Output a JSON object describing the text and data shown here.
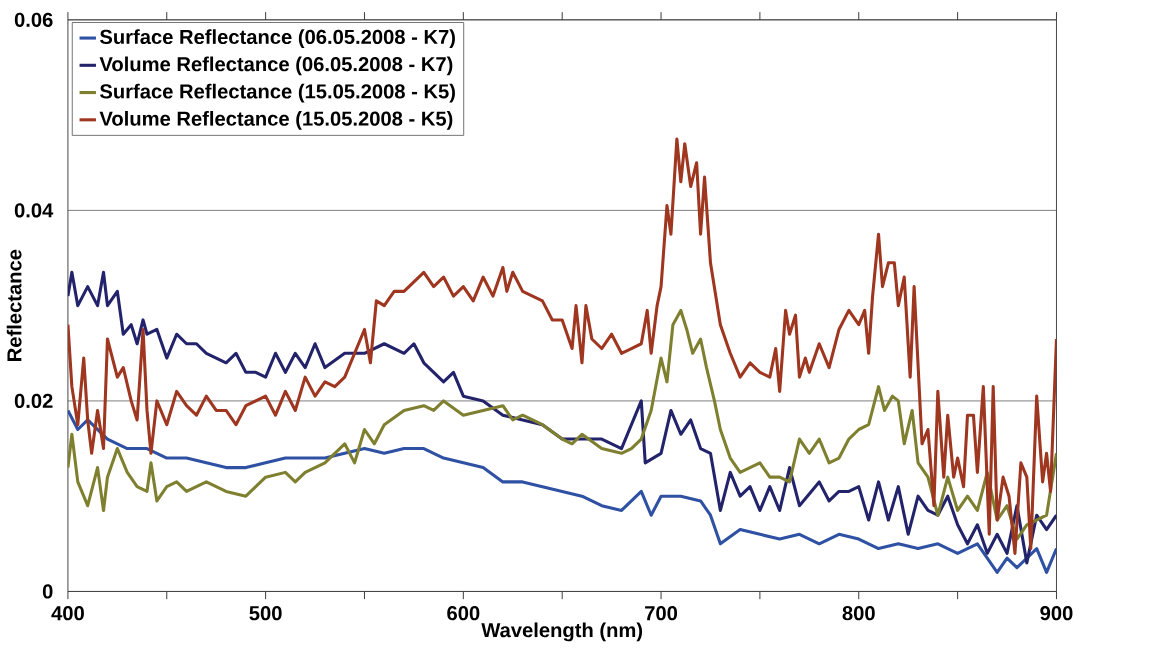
{
  "chart_data": {
    "type": "line",
    "xlabel": "Wavelength (nm)",
    "ylabel": "Reflectance",
    "xlim": [
      400,
      900
    ],
    "xticks": [
      400,
      500,
      600,
      700,
      800,
      900
    ],
    "ylim": [
      0,
      0.06
    ],
    "yticks": [
      0,
      0.02,
      0.04,
      0.06
    ],
    "grid": "y",
    "legend": "top left",
    "marker": "none",
    "line_style": "solid",
    "series": [
      {
        "name": "Surface Reflectance (06.05.2008 - K7)",
        "color": "#2f51a3",
        "x": [
          400,
          405,
          410,
          420,
          430,
          440,
          450,
          460,
          470,
          480,
          490,
          500,
          510,
          520,
          530,
          540,
          550,
          560,
          570,
          580,
          590,
          600,
          610,
          620,
          630,
          640,
          650,
          660,
          670,
          680,
          690,
          695,
          700,
          710,
          720,
          725,
          730,
          740,
          750,
          760,
          770,
          780,
          790,
          800,
          810,
          820,
          830,
          840,
          850,
          860,
          870,
          875,
          880,
          890,
          895,
          900
        ],
        "values": [
          0.019,
          0.017,
          0.018,
          0.016,
          0.015,
          0.015,
          0.014,
          0.014,
          0.0135,
          0.013,
          0.013,
          0.0135,
          0.014,
          0.014,
          0.014,
          0.0145,
          0.015,
          0.0145,
          0.015,
          0.015,
          0.014,
          0.0135,
          0.013,
          0.0115,
          0.0115,
          0.011,
          0.0105,
          0.01,
          0.009,
          0.0085,
          0.0105,
          0.008,
          0.01,
          0.01,
          0.0095,
          0.008,
          0.005,
          0.0065,
          0.006,
          0.0055,
          0.006,
          0.005,
          0.006,
          0.0055,
          0.0045,
          0.005,
          0.0045,
          0.005,
          0.004,
          0.005,
          0.002,
          0.0035,
          0.0025,
          0.0045,
          0.002,
          0.0045
        ]
      },
      {
        "name": "Volume Reflectance (06.05.2008 - K7)",
        "color": "#22236b",
        "x": [
          400,
          402,
          405,
          410,
          415,
          418,
          420,
          425,
          428,
          432,
          435,
          438,
          440,
          445,
          450,
          455,
          460,
          465,
          470,
          480,
          485,
          490,
          495,
          500,
          505,
          510,
          515,
          520,
          525,
          530,
          540,
          550,
          560,
          570,
          575,
          580,
          590,
          595,
          600,
          610,
          620,
          630,
          640,
          650,
          660,
          670,
          680,
          690,
          692,
          700,
          705,
          710,
          715,
          720,
          725,
          730,
          735,
          740,
          745,
          750,
          755,
          760,
          765,
          770,
          780,
          785,
          790,
          795,
          800,
          805,
          810,
          815,
          820,
          825,
          830,
          835,
          840,
          845,
          850,
          855,
          860,
          865,
          870,
          875,
          880,
          885,
          890,
          895,
          900
        ],
        "values": [
          0.031,
          0.0335,
          0.03,
          0.032,
          0.03,
          0.0335,
          0.03,
          0.0315,
          0.027,
          0.028,
          0.026,
          0.0285,
          0.027,
          0.0275,
          0.0245,
          0.027,
          0.026,
          0.026,
          0.025,
          0.024,
          0.025,
          0.023,
          0.023,
          0.0225,
          0.025,
          0.023,
          0.025,
          0.0235,
          0.026,
          0.0235,
          0.025,
          0.025,
          0.026,
          0.025,
          0.026,
          0.024,
          0.022,
          0.023,
          0.0205,
          0.02,
          0.0185,
          0.018,
          0.0175,
          0.016,
          0.016,
          0.016,
          0.015,
          0.02,
          0.0135,
          0.0145,
          0.019,
          0.0165,
          0.018,
          0.015,
          0.0145,
          0.0085,
          0.0125,
          0.01,
          0.011,
          0.0085,
          0.011,
          0.0085,
          0.013,
          0.009,
          0.0115,
          0.0095,
          0.0105,
          0.0105,
          0.011,
          0.0075,
          0.0115,
          0.0075,
          0.011,
          0.006,
          0.01,
          0.0085,
          0.008,
          0.01,
          0.007,
          0.005,
          0.007,
          0.004,
          0.006,
          0.004,
          0.009,
          0.003,
          0.008,
          0.0065,
          0.008
        ]
      },
      {
        "name": "Surface Reflectance (15.05.2008 - K5)",
        "color": "#7f7f30",
        "x": [
          400,
          402,
          405,
          410,
          415,
          418,
          420,
          425,
          430,
          435,
          440,
          442,
          445,
          450,
          455,
          460,
          470,
          480,
          490,
          495,
          500,
          510,
          515,
          520,
          525,
          530,
          535,
          540,
          545,
          550,
          555,
          560,
          570,
          580,
          585,
          590,
          600,
          610,
          620,
          625,
          630,
          640,
          650,
          655,
          660,
          670,
          680,
          685,
          690,
          695,
          700,
          703,
          706,
          710,
          713,
          716,
          720,
          723,
          727,
          730,
          735,
          740,
          745,
          750,
          755,
          760,
          765,
          770,
          775,
          780,
          785,
          790,
          795,
          800,
          805,
          810,
          813,
          817,
          820,
          823,
          827,
          830,
          835,
          840,
          845,
          850,
          855,
          860,
          865,
          870,
          875,
          880,
          885,
          890,
          895,
          900
        ],
        "values": [
          0.013,
          0.0165,
          0.0115,
          0.009,
          0.013,
          0.0085,
          0.012,
          0.015,
          0.0125,
          0.011,
          0.0105,
          0.0135,
          0.0095,
          0.011,
          0.0115,
          0.0105,
          0.0115,
          0.0105,
          0.01,
          0.011,
          0.012,
          0.0125,
          0.0115,
          0.0125,
          0.013,
          0.0135,
          0.0145,
          0.0155,
          0.0135,
          0.017,
          0.0155,
          0.0175,
          0.019,
          0.0195,
          0.019,
          0.02,
          0.0185,
          0.019,
          0.0195,
          0.018,
          0.0185,
          0.0175,
          0.016,
          0.0155,
          0.0165,
          0.015,
          0.0145,
          0.015,
          0.016,
          0.019,
          0.0245,
          0.022,
          0.028,
          0.0295,
          0.0275,
          0.025,
          0.0265,
          0.0235,
          0.02,
          0.017,
          0.014,
          0.0125,
          0.013,
          0.0135,
          0.012,
          0.012,
          0.0115,
          0.016,
          0.0145,
          0.016,
          0.0135,
          0.014,
          0.016,
          0.017,
          0.0175,
          0.0215,
          0.019,
          0.0205,
          0.02,
          0.0155,
          0.019,
          0.0135,
          0.012,
          0.008,
          0.012,
          0.0085,
          0.01,
          0.0085,
          0.0125,
          0.0075,
          0.009,
          0.0055,
          0.007,
          0.0075,
          0.008,
          0.0145
        ]
      },
      {
        "name": "Volume Reflectance (15.05.2008 - K5)",
        "color": "#9e3620",
        "x": [
          400,
          402,
          405,
          408,
          410,
          412,
          415,
          418,
          420,
          425,
          428,
          432,
          435,
          438,
          440,
          442,
          445,
          450,
          455,
          460,
          465,
          470,
          475,
          480,
          485,
          490,
          500,
          505,
          510,
          515,
          520,
          525,
          530,
          535,
          540,
          545,
          550,
          553,
          556,
          560,
          565,
          570,
          575,
          580,
          585,
          590,
          595,
          600,
          605,
          610,
          615,
          620,
          622,
          625,
          630,
          640,
          645,
          650,
          655,
          657,
          660,
          662,
          665,
          670,
          675,
          680,
          685,
          690,
          693,
          695,
          698,
          700,
          703,
          705,
          708,
          710,
          712,
          715,
          718,
          720,
          722,
          725,
          730,
          735,
          740,
          745,
          750,
          755,
          758,
          760,
          763,
          765,
          768,
          770,
          773,
          775,
          780,
          785,
          790,
          795,
          800,
          803,
          805,
          807,
          810,
          812,
          815,
          818,
          820,
          823,
          826,
          828,
          832,
          835,
          838,
          840,
          843,
          845,
          848,
          850,
          853,
          855,
          858,
          860,
          863,
          866,
          868,
          870,
          873,
          876,
          879,
          882,
          885,
          887,
          890,
          893,
          895,
          897,
          900
        ],
        "values": [
          0.028,
          0.0215,
          0.0175,
          0.0245,
          0.018,
          0.0145,
          0.019,
          0.015,
          0.0265,
          0.0225,
          0.0235,
          0.02,
          0.018,
          0.0275,
          0.019,
          0.0145,
          0.02,
          0.0175,
          0.021,
          0.0195,
          0.0185,
          0.0205,
          0.019,
          0.019,
          0.0175,
          0.0195,
          0.0205,
          0.0185,
          0.021,
          0.019,
          0.0225,
          0.0205,
          0.022,
          0.0215,
          0.0225,
          0.025,
          0.0275,
          0.024,
          0.0305,
          0.03,
          0.0315,
          0.0315,
          0.0325,
          0.0335,
          0.032,
          0.033,
          0.031,
          0.032,
          0.0305,
          0.033,
          0.031,
          0.034,
          0.0315,
          0.0335,
          0.0315,
          0.0305,
          0.0285,
          0.0285,
          0.0255,
          0.03,
          0.024,
          0.03,
          0.0265,
          0.0255,
          0.027,
          0.025,
          0.0255,
          0.026,
          0.0295,
          0.025,
          0.03,
          0.032,
          0.0405,
          0.0375,
          0.0475,
          0.043,
          0.047,
          0.0425,
          0.045,
          0.0375,
          0.0435,
          0.0345,
          0.028,
          0.025,
          0.0225,
          0.024,
          0.023,
          0.0225,
          0.0255,
          0.021,
          0.0295,
          0.027,
          0.029,
          0.0225,
          0.0245,
          0.023,
          0.026,
          0.0235,
          0.0275,
          0.0295,
          0.028,
          0.0295,
          0.025,
          0.031,
          0.0375,
          0.032,
          0.0345,
          0.0345,
          0.03,
          0.033,
          0.0225,
          0.032,
          0.0155,
          0.017,
          0.009,
          0.021,
          0.012,
          0.0185,
          0.012,
          0.014,
          0.011,
          0.0185,
          0.0185,
          0.0125,
          0.0215,
          0.006,
          0.0215,
          0.0075,
          0.012,
          0.01,
          0.004,
          0.0135,
          0.012,
          0.0045,
          0.0205,
          0.0115,
          0.0145,
          0.0105,
          0.0265
        ]
      }
    ]
  }
}
